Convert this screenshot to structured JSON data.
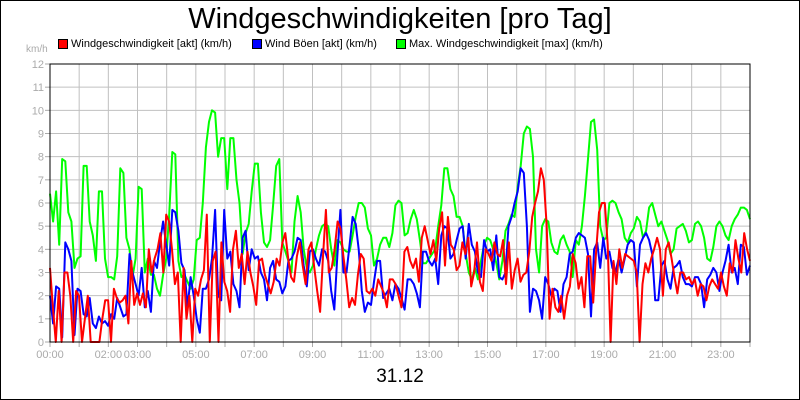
{
  "chart": {
    "title": "Windgeschwindigkeiten [pro Tag]",
    "unit_label": "km/h",
    "date_label": "31.12",
    "legend": [
      {
        "label": "Windgeschwindigkeit [akt] (km/h)",
        "color": "#ff0000"
      },
      {
        "label": "Wind Böen [akt] (km/h)",
        "color": "#0000ff"
      },
      {
        "label": "Max. Windgeschwindigkeit [max] (km/h)",
        "color": "#00ff00"
      }
    ]
  },
  "chart_data": {
    "type": "line",
    "title": "Windgeschwindigkeiten [pro Tag]",
    "xlabel": "31.12",
    "ylabel": "km/h",
    "ylim": [
      0,
      12
    ],
    "xlim_hours": [
      0,
      24
    ],
    "grid": true,
    "legend_position": "top",
    "y_ticks": [
      "0",
      "1",
      "2",
      "3",
      "4",
      "5",
      "6",
      "7",
      "8",
      "9",
      "10",
      "11",
      "12"
    ],
    "x_ticks": [
      {
        "label": "00:00",
        "hour": 0
      },
      {
        "label": "02:00",
        "hour": 2
      },
      {
        "label": "03:00",
        "hour": 3
      },
      {
        "label": "05:00",
        "hour": 5
      },
      {
        "label": "07:00",
        "hour": 7
      },
      {
        "label": "09:00",
        "hour": 9
      },
      {
        "label": "11:00",
        "hour": 11
      },
      {
        "label": "13:00",
        "hour": 13
      },
      {
        "label": "15:00",
        "hour": 15
      },
      {
        "label": "17:00",
        "hour": 17
      },
      {
        "label": "19:00",
        "hour": 19
      },
      {
        "label": "21:00",
        "hour": 21
      },
      {
        "label": "23:00",
        "hour": 23
      }
    ],
    "x_step_minutes": 10,
    "series": [
      {
        "name": "Max. Windgeschwindigkeit [max] (km/h)",
        "color": "#00ff00",
        "values": [
          6.4,
          5.2,
          6.5,
          4.2,
          7.9,
          7.8,
          5.6,
          5.2,
          3.2,
          3.6,
          3.7,
          7.6,
          7.6,
          5.2,
          4.6,
          3.5,
          6.5,
          6.5,
          3.6,
          2.8,
          2.8,
          2.7,
          3.7,
          7.5,
          7.3,
          4.5,
          4.0,
          2.8,
          3.6,
          6.7,
          6.6,
          3.0,
          3.6,
          2.9,
          2.9,
          2.3,
          2.0,
          2.9,
          3.6,
          5.5,
          8.2,
          8.1,
          3.5,
          2.8,
          2.9,
          2.6,
          2.3,
          2.7,
          4.4,
          4.5,
          6.0,
          8.4,
          9.5,
          10.0,
          9.9,
          8.0,
          8.8,
          8.8,
          6.6,
          8.8,
          8.8,
          7.0,
          6.0,
          3.8,
          4.7,
          5.1,
          6.5,
          7.7,
          7.7,
          5.6,
          4.3,
          4.1,
          4.4,
          5.9,
          7.6,
          7.9,
          4.3,
          3.9,
          3.5,
          3.0,
          5.2,
          6.3,
          5.6,
          4.0,
          3.2,
          3.0,
          3.3,
          4.0,
          4.6,
          5.0,
          5.1,
          5.0,
          4.0,
          3.3,
          4.4,
          4.3,
          4.0,
          3.9,
          3.9,
          4.6,
          5.4,
          6.0,
          6.0,
          5.8,
          4.9,
          4.6,
          3.3,
          3.6,
          4.2,
          4.5,
          4.5,
          4.1,
          4.7,
          5.9,
          6.1,
          6.0,
          4.6,
          4.7,
          5.3,
          5.7,
          5.3,
          4.4,
          3.4,
          3.4,
          3.6,
          3.8,
          4.0,
          5.0,
          5.9,
          7.5,
          7.5,
          6.6,
          6.3,
          5.4,
          5.4,
          5.0,
          3.8,
          3.0,
          2.7,
          3.2,
          2.7,
          3.5,
          4.2,
          4.5,
          4.4,
          4.0,
          3.4,
          2.7,
          3.5,
          4.8,
          5.1,
          5.5,
          5.4,
          6.7,
          7.6,
          9.0,
          9.3,
          9.2,
          8.0,
          4.0,
          3.0,
          5.0,
          5.3,
          5.2,
          4.3,
          3.9,
          3.8,
          4.4,
          4.6,
          4.2,
          3.9,
          2.8,
          4.4,
          4.2,
          5.0,
          6.3,
          7.9,
          9.5,
          9.6,
          8.3,
          5.0,
          4.4,
          4.5,
          6.0,
          6.1,
          6.0,
          5.6,
          5.3,
          4.5,
          4.3,
          4.7,
          4.9,
          5.4,
          5.2,
          4.5,
          4.8,
          5.8,
          6.0,
          5.5,
          5.0,
          5.2,
          4.8,
          4.4,
          3.8,
          4.0,
          4.9,
          5.0,
          5.1,
          4.8,
          4.3,
          4.4,
          5.1,
          5.2,
          5.0,
          4.5,
          3.6,
          3.5,
          4.1,
          5.0,
          5.2,
          5.0,
          4.6,
          4.4,
          5.0,
          5.3,
          5.5,
          5.8,
          5.8,
          5.7,
          5.3
        ]
      },
      {
        "name": "Wind Böen [akt] (km/h)",
        "color": "#0000ff",
        "values": [
          2.0,
          0.8,
          2.4,
          2.3,
          0.2,
          4.3,
          4.0,
          3.5,
          0.3,
          2.3,
          2.2,
          1.2,
          1.1,
          1.9,
          0.8,
          0.6,
          1.1,
          0.8,
          0.9,
          0.7,
          1.2,
          1.0,
          1.9,
          1.5,
          1.1,
          1.2,
          3.8,
          3.0,
          2.5,
          2.0,
          3.2,
          1.5,
          2.2,
          1.3,
          3.5,
          3.2,
          4.3,
          5.2,
          4.2,
          3.3,
          5.7,
          5.6,
          4.8,
          3.4,
          3.1,
          1.5,
          2.8,
          2.0,
          1.0,
          0.4,
          2.3,
          2.3,
          2.7,
          3.6,
          5.7,
          2.0,
          1.8,
          5.7,
          3.6,
          3.9,
          2.5,
          2.2,
          1.5,
          4.5,
          4.8,
          3.1,
          4.0,
          3.6,
          3.7,
          3.0,
          2.7,
          1.8,
          3.2,
          3.5,
          2.7,
          2.6,
          2.1,
          2.4,
          3.5,
          3.6,
          3.9,
          4.5,
          4.4,
          3.3,
          2.4,
          3.9,
          4.0,
          3.6,
          3.3,
          4.0,
          3.9,
          3.5,
          2.2,
          1.4,
          3.7,
          5.7,
          3.0,
          3.0,
          4.2,
          5.4,
          5.1,
          4.0,
          2.2,
          1.3,
          1.7,
          1.6,
          2.6,
          3.5,
          3.5,
          1.9,
          2.1,
          2.3,
          1.8,
          2.5,
          2.3,
          1.9,
          1.4,
          2.7,
          2.7,
          2.5,
          2.1,
          1.5,
          3.9,
          3.9,
          3.5,
          3.3,
          3.6,
          2.5,
          4.6,
          5.0,
          4.9,
          3.6,
          3.8,
          4.4,
          4.9,
          5.0,
          3.6,
          5.1,
          4.2,
          3.9,
          3.0,
          2.8,
          4.4,
          3.9,
          4.0,
          3.1,
          4.6,
          2.8,
          2.7,
          3.0,
          5.0,
          5.4,
          6.0,
          6.5,
          7.5,
          7.3,
          5.0,
          1.3,
          2.3,
          2.2,
          1.8,
          1.0,
          2.8,
          2.5,
          2.0,
          2.3,
          2.2,
          1.3,
          2.5,
          2.8,
          3.8,
          3.9,
          4.5,
          4.7,
          4.6,
          4.5,
          3.8,
          1.1,
          4.0,
          4.3,
          3.2,
          4.5,
          3.6,
          3.9,
          3.2,
          3.0,
          3.6,
          3.0,
          3.6,
          4.2,
          4.4,
          4.3,
          2.4,
          4.2,
          4.5,
          4.7,
          4.4,
          3.8,
          1.8,
          1.8,
          3.3,
          3.5,
          2.7,
          2.3,
          3.2,
          3.3,
          3.5,
          2.8,
          2.5,
          2.5,
          2.4,
          2.8,
          2.8,
          2.5,
          1.5,
          2.7,
          2.9,
          3.2,
          3.0,
          2.2,
          3.0,
          3.5,
          4.2,
          3.0,
          3.2,
          2.5,
          4.2,
          4.1,
          2.9,
          3.3
        ]
      },
      {
        "name": "Windgeschwindigkeit [akt] (km/h)",
        "color": "#ff0000",
        "values": [
          3.2,
          1.5,
          0.0,
          2.2,
          0.0,
          3.0,
          3.0,
          2.0,
          0.0,
          2.2,
          2.0,
          0.0,
          1.0,
          2.0,
          0.0,
          0.0,
          0.0,
          0.0,
          1.0,
          1.8,
          1.8,
          0.0,
          2.3,
          1.9,
          1.7,
          1.8,
          2.0,
          0.8,
          3.5,
          1.6,
          2.1,
          1.6,
          2.1,
          1.5,
          4.0,
          3.0,
          3.6,
          4.0,
          4.7,
          3.0,
          5.5,
          5.2,
          4.0,
          2.5,
          3.0,
          0.0,
          3.2,
          1.0,
          2.0,
          0.0,
          2.3,
          2.0,
          2.7,
          3.1,
          5.5,
          0.0,
          3.5,
          3.9,
          0.0,
          4.3,
          2.6,
          2.2,
          1.3,
          4.0,
          4.8,
          3.2,
          3.8,
          2.5,
          3.9,
          3.0,
          2.4,
          1.6,
          3.5,
          3.6,
          2.9,
          2.5,
          2.1,
          2.6,
          3.6,
          3.3,
          4.3,
          4.7,
          3.6,
          2.8,
          2.6,
          3.7,
          4.3,
          3.3,
          2.5,
          4.0,
          4.3,
          3.2,
          2.2,
          1.3,
          3.7,
          5.7,
          3.0,
          3.2,
          4.0,
          5.2,
          4.9,
          3.7,
          2.7,
          1.5,
          1.9,
          1.6,
          2.9,
          3.8,
          3.6,
          2.2,
          2.1,
          2.3,
          2.0,
          2.7,
          2.4,
          2.1,
          1.5,
          2.7,
          2.7,
          2.5,
          2.0,
          1.5,
          3.9,
          4.1,
          3.5,
          3.2,
          3.6,
          2.6,
          4.5,
          5.0,
          4.4,
          3.8,
          4.4,
          3.5,
          4.9,
          5.6,
          3.3,
          5.4,
          4.2,
          4.0,
          3.1,
          3.3,
          4.3,
          3.8,
          4.5,
          2.4,
          3.0,
          4.3,
          2.6,
          2.2,
          4.0,
          3.8,
          3.5,
          4.3,
          3.8,
          3.7,
          4.4,
          2.5,
          4.3,
          2.3,
          3.1,
          3.6,
          2.6,
          2.9,
          3.0,
          3.9,
          5.4,
          6.0,
          6.5,
          7.5,
          7.0,
          5.0,
          1.0,
          2.3,
          1.5,
          1.3,
          2.0,
          1.0,
          2.0,
          2.4,
          3.8,
          3.4,
          2.3,
          2.8,
          1.5,
          3.7,
          3.7,
          1.7,
          3.9,
          5.6,
          6.0,
          6.0,
          4.2,
          0.0,
          3.5,
          2.5,
          4.0,
          3.2,
          3.8,
          3.7,
          3.6,
          3.5,
          3.0,
          0.0,
          2.5,
          3.4,
          3.0,
          3.6,
          4.0,
          4.5,
          4.0,
          2.0,
          4.0,
          4.3,
          3.6,
          2.8,
          2.1,
          3.0,
          3.0,
          2.7,
          2.8,
          2.5,
          2.7,
          2.0,
          2.5,
          2.4,
          1.8,
          2.4,
          2.7,
          2.5,
          2.3,
          3.0,
          2.4,
          2.0,
          3.4,
          3.0,
          4.4,
          3.6,
          3.0,
          4.7,
          4.0,
          3.5
        ]
      }
    ]
  }
}
